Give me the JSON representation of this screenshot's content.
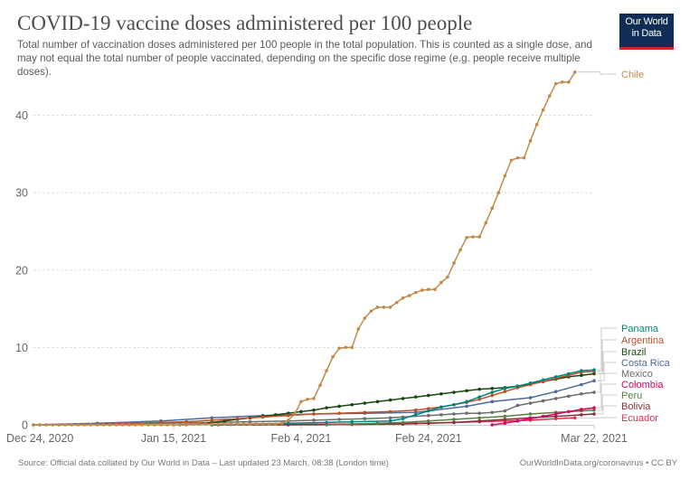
{
  "header": {
    "title": "COVID-19 vaccine doses administered per 100 people",
    "subtitle": "Total number of vaccination doses administered per 100 people in the total population. This is counted as a single dose, and may not equal the total number of people vaccinated, depending on the specific dose regime (e.g. people receive multiple doses).",
    "logo_line1": "Our World",
    "logo_line2": "in Data"
  },
  "footer": {
    "source": "Source: Official data collated by Our World in Data – Last updated 23 March, 08:38 (London time)",
    "credit": "OurWorldInData.org/coronavirus • CC BY"
  },
  "chart_data": {
    "type": "line",
    "title": "COVID-19 vaccine doses administered per 100 people",
    "xlabel": "",
    "ylabel": "",
    "x_axis": {
      "start": "Dec 24, 2020",
      "end": "Mar 22, 2021",
      "ticks": [
        {
          "label": "Dec 24, 2020",
          "day": 0
        },
        {
          "label": "Jan 15, 2021",
          "day": 22
        },
        {
          "label": "Feb 4, 2021",
          "day": 42
        },
        {
          "label": "Feb 24, 2021",
          "day": 62
        },
        {
          "label": "Mar 22, 2021",
          "day": 88
        }
      ],
      "range_days": [
        0,
        88
      ]
    },
    "y_axis": {
      "ticks": [
        0,
        10,
        20,
        30,
        40
      ],
      "ylim": [
        0,
        46
      ]
    },
    "grid": true,
    "legend": "right",
    "series": [
      {
        "name": "Chile",
        "color": "#c08a4a",
        "points": [
          [
            0,
            0
          ],
          [
            1,
            0
          ],
          [
            2,
            0
          ],
          [
            3,
            0
          ],
          [
            4,
            0
          ],
          [
            5,
            0
          ],
          [
            6,
            0
          ],
          [
            7,
            0
          ],
          [
            8,
            0
          ],
          [
            9,
            0
          ],
          [
            10,
            0
          ],
          [
            11,
            0
          ],
          [
            12,
            0
          ],
          [
            13,
            0
          ],
          [
            14,
            0
          ],
          [
            15,
            0
          ],
          [
            16,
            0
          ],
          [
            17,
            0
          ],
          [
            18,
            0
          ],
          [
            19,
            0
          ],
          [
            20,
            0
          ],
          [
            21,
            0
          ],
          [
            22,
            0
          ],
          [
            23,
            0
          ],
          [
            24,
            0
          ],
          [
            25,
            0.1
          ],
          [
            26,
            0.1
          ],
          [
            27,
            0.1
          ],
          [
            28,
            0.1
          ],
          [
            29,
            0.1
          ],
          [
            30,
            0.1
          ],
          [
            31,
            0.1
          ],
          [
            32,
            0.1
          ],
          [
            33,
            0.1
          ],
          [
            34,
            0.1
          ],
          [
            35,
            0.1
          ],
          [
            36,
            0.1
          ],
          [
            37,
            0.1
          ],
          [
            38,
            0.1
          ],
          [
            39,
            0.2
          ],
          [
            40,
            0.6
          ],
          [
            41,
            1.4
          ],
          [
            42,
            3.0
          ],
          [
            43,
            3.3
          ],
          [
            44,
            3.4
          ],
          [
            45,
            5.1
          ],
          [
            46,
            7.0
          ],
          [
            47,
            8.8
          ],
          [
            48,
            9.9
          ],
          [
            49,
            10.0
          ],
          [
            50,
            10.0
          ],
          [
            51,
            12.4
          ],
          [
            52,
            13.8
          ],
          [
            53,
            14.7
          ],
          [
            54,
            15.2
          ],
          [
            55,
            15.2
          ],
          [
            56,
            15.2
          ],
          [
            57,
            15.8
          ],
          [
            58,
            16.4
          ],
          [
            59,
            16.7
          ],
          [
            60,
            17.1
          ],
          [
            61,
            17.4
          ],
          [
            62,
            17.5
          ],
          [
            63,
            17.5
          ],
          [
            64,
            18.4
          ],
          [
            65,
            19.1
          ],
          [
            66,
            20.9
          ],
          [
            67,
            22.6
          ],
          [
            68,
            24.2
          ],
          [
            69,
            24.3
          ],
          [
            70,
            24.3
          ],
          [
            71,
            26.1
          ],
          [
            72,
            28.0
          ],
          [
            73,
            30.0
          ],
          [
            74,
            32.2
          ],
          [
            75,
            34.2
          ],
          [
            76,
            34.5
          ],
          [
            77,
            34.5
          ],
          [
            78,
            36.7
          ],
          [
            79,
            38.8
          ],
          [
            80,
            40.7
          ],
          [
            81,
            42.5
          ],
          [
            82,
            44.1
          ],
          [
            83,
            44.3
          ],
          [
            84,
            44.3
          ],
          [
            85,
            45.6
          ]
        ]
      },
      {
        "name": "Panama",
        "color": "#00847e",
        "points": [
          [
            28,
            0
          ],
          [
            31,
            0.05
          ],
          [
            34,
            0.1
          ],
          [
            40,
            0.2
          ],
          [
            46,
            0.3
          ],
          [
            50,
            0.4
          ],
          [
            56,
            0.5
          ],
          [
            58,
            0.8
          ],
          [
            60,
            1.3
          ],
          [
            62,
            1.8
          ],
          [
            64,
            2.3
          ],
          [
            66,
            2.6
          ],
          [
            68,
            3.0
          ],
          [
            70,
            3.6
          ],
          [
            72,
            4.2
          ],
          [
            74,
            4.7
          ],
          [
            76,
            5.0
          ],
          [
            78,
            5.4
          ],
          [
            80,
            5.8
          ],
          [
            82,
            6.2
          ],
          [
            84,
            6.6
          ],
          [
            86,
            7.0
          ],
          [
            88,
            7.1
          ]
        ]
      },
      {
        "name": "Argentina",
        "color": "#c15125",
        "points": [
          [
            4,
            0
          ],
          [
            8,
            0.05
          ],
          [
            12,
            0.1
          ],
          [
            16,
            0.2
          ],
          [
            20,
            0.3
          ],
          [
            24,
            0.4
          ],
          [
            28,
            0.6
          ],
          [
            32,
            0.8
          ],
          [
            36,
            1.0
          ],
          [
            40,
            1.2
          ],
          [
            44,
            1.4
          ],
          [
            48,
            1.5
          ],
          [
            52,
            1.6
          ],
          [
            56,
            1.7
          ],
          [
            60,
            1.9
          ],
          [
            62,
            2.1
          ],
          [
            64,
            2.3
          ],
          [
            66,
            2.6
          ],
          [
            68,
            2.9
          ],
          [
            70,
            3.3
          ],
          [
            72,
            3.8
          ],
          [
            74,
            4.3
          ],
          [
            76,
            4.8
          ],
          [
            78,
            5.2
          ],
          [
            80,
            5.6
          ],
          [
            82,
            6.0
          ],
          [
            84,
            6.4
          ],
          [
            86,
            6.8
          ],
          [
            88,
            6.9
          ]
        ]
      },
      {
        "name": "Brazil",
        "color": "#18470f",
        "points": [
          [
            23,
            0
          ],
          [
            26,
            0.1
          ],
          [
            28,
            0.3
          ],
          [
            30,
            0.5
          ],
          [
            32,
            0.7
          ],
          [
            34,
            0.9
          ],
          [
            36,
            1.1
          ],
          [
            38,
            1.3
          ],
          [
            40,
            1.5
          ],
          [
            42,
            1.7
          ],
          [
            44,
            1.9
          ],
          [
            46,
            2.2
          ],
          [
            48,
            2.4
          ],
          [
            50,
            2.6
          ],
          [
            52,
            2.8
          ],
          [
            54,
            3.0
          ],
          [
            56,
            3.2
          ],
          [
            58,
            3.4
          ],
          [
            60,
            3.6
          ],
          [
            62,
            3.8
          ],
          [
            64,
            4.0
          ],
          [
            66,
            4.2
          ],
          [
            68,
            4.4
          ],
          [
            70,
            4.6
          ],
          [
            72,
            4.7
          ],
          [
            74,
            4.8
          ],
          [
            76,
            5.0
          ],
          [
            78,
            5.3
          ],
          [
            80,
            5.6
          ],
          [
            82,
            5.9
          ],
          [
            84,
            6.2
          ],
          [
            86,
            6.4
          ],
          [
            88,
            6.6
          ]
        ]
      },
      {
        "name": "Costa Rica",
        "color": "#4c6a9c",
        "points": [
          [
            0,
            0
          ],
          [
            10,
            0.2
          ],
          [
            20,
            0.5
          ],
          [
            28,
            0.9
          ],
          [
            36,
            1.2
          ],
          [
            44,
            1.4
          ],
          [
            52,
            1.5
          ],
          [
            60,
            1.6
          ],
          [
            68,
            2.4
          ],
          [
            72,
            3.0
          ],
          [
            78,
            3.5
          ],
          [
            82,
            4.3
          ],
          [
            86,
            5.2
          ],
          [
            88,
            5.7
          ]
        ]
      },
      {
        "name": "Mexico",
        "color": "#6d6d6d",
        "points": [
          [
            1,
            0
          ],
          [
            10,
            0.1
          ],
          [
            20,
            0.2
          ],
          [
            28,
            0.3
          ],
          [
            34,
            0.4
          ],
          [
            40,
            0.5
          ],
          [
            44,
            0.6
          ],
          [
            48,
            0.7
          ],
          [
            52,
            0.8
          ],
          [
            56,
            0.9
          ],
          [
            58,
            1.0
          ],
          [
            62,
            1.2
          ],
          [
            64,
            1.3
          ],
          [
            66,
            1.4
          ],
          [
            68,
            1.5
          ],
          [
            70,
            1.5
          ],
          [
            72,
            1.6
          ],
          [
            74,
            1.8
          ],
          [
            76,
            2.5
          ],
          [
            78,
            2.8
          ],
          [
            80,
            3.1
          ],
          [
            82,
            3.4
          ],
          [
            84,
            3.7
          ],
          [
            86,
            4.0
          ],
          [
            88,
            4.2
          ]
        ]
      },
      {
        "name": "Colombia",
        "color": "#e0005f",
        "points": [
          [
            72,
            0
          ],
          [
            74,
            0.2
          ],
          [
            76,
            0.5
          ],
          [
            78,
            0.8
          ],
          [
            80,
            1.1
          ],
          [
            82,
            1.4
          ],
          [
            84,
            1.7
          ],
          [
            86,
            2.0
          ],
          [
            88,
            2.2
          ]
        ]
      },
      {
        "name": "Peru",
        "color": "#578145",
        "points": [
          [
            46,
            0
          ],
          [
            50,
            0.1
          ],
          [
            54,
            0.2
          ],
          [
            58,
            0.3
          ],
          [
            62,
            0.5
          ],
          [
            66,
            0.7
          ],
          [
            70,
            0.9
          ],
          [
            74,
            1.1
          ],
          [
            78,
            1.4
          ],
          [
            82,
            1.6
          ],
          [
            86,
            1.8
          ],
          [
            88,
            1.9
          ]
        ]
      },
      {
        "name": "Bolivia",
        "color": "#883039",
        "points": [
          [
            28,
            0
          ],
          [
            40,
            0
          ],
          [
            50,
            0.05
          ],
          [
            58,
            0.1
          ],
          [
            62,
            0.2
          ],
          [
            66,
            0.3
          ],
          [
            70,
            0.5
          ],
          [
            74,
            0.7
          ],
          [
            78,
            0.9
          ],
          [
            82,
            1.1
          ],
          [
            86,
            1.3
          ],
          [
            88,
            1.4
          ]
        ]
      },
      {
        "name": "Ecuador",
        "color": "#e03050",
        "points": [
          [
            29,
            0
          ],
          [
            40,
            0.05
          ],
          [
            50,
            0.1
          ],
          [
            60,
            0.2
          ],
          [
            66,
            0.3
          ],
          [
            70,
            0.4
          ],
          [
            74,
            0.5
          ],
          [
            78,
            0.6
          ],
          [
            82,
            0.8
          ],
          [
            85,
            0.9
          ]
        ]
      }
    ],
    "legend_labels": [
      {
        "name": "Chile",
        "color": "#c08a4a"
      },
      {
        "name": "Panama",
        "color": "#00847e"
      },
      {
        "name": "Argentina",
        "color": "#c15125"
      },
      {
        "name": "Brazil",
        "color": "#18470f"
      },
      {
        "name": "Costa Rica",
        "color": "#4c6a9c"
      },
      {
        "name": "Mexico",
        "color": "#6d6d6d"
      },
      {
        "name": "Colombia",
        "color": "#e0005f"
      },
      {
        "name": "Peru",
        "color": "#578145"
      },
      {
        "name": "Bolivia",
        "color": "#883039"
      },
      {
        "name": "Ecuador",
        "color": "#e03050"
      }
    ]
  }
}
